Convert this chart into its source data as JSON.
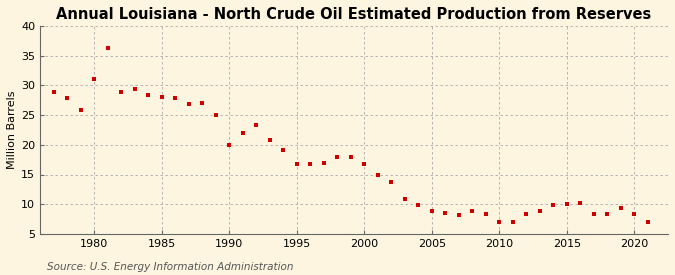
{
  "title": "Annual Louisiana - North Crude Oil Estimated Production from Reserves",
  "ylabel": "Million Barrels",
  "source": "Source: U.S. Energy Information Administration",
  "years": [
    1977,
    1978,
    1979,
    1980,
    1981,
    1982,
    1983,
    1984,
    1985,
    1986,
    1987,
    1988,
    1989,
    1990,
    1991,
    1992,
    1993,
    1994,
    1995,
    1996,
    1997,
    1998,
    1999,
    2000,
    2001,
    2002,
    2003,
    2004,
    2005,
    2006,
    2007,
    2008,
    2009,
    2010,
    2011,
    2012,
    2013,
    2014,
    2015,
    2016,
    2017,
    2018,
    2019,
    2020,
    2021
  ],
  "values": [
    28.9,
    27.8,
    25.8,
    31.0,
    36.2,
    28.8,
    29.3,
    28.3,
    28.0,
    27.8,
    26.8,
    27.1,
    25.0,
    20.0,
    22.0,
    23.3,
    20.8,
    19.2,
    16.8,
    16.8,
    17.0,
    18.0,
    18.0,
    16.8,
    15.0,
    13.8,
    10.8,
    9.8,
    8.8,
    8.5,
    8.2,
    8.8,
    8.3,
    7.0,
    7.0,
    8.3,
    8.8,
    9.8,
    10.0,
    10.2,
    8.3,
    8.3,
    9.3,
    8.3,
    7.0
  ],
  "marker_color": "#cc0000",
  "marker_size": 3.5,
  "background_color": "#fdf5e0",
  "grid_color": "#aaaaaa",
  "xlim": [
    1976,
    2022.5
  ],
  "ylim": [
    5,
    40
  ],
  "yticks": [
    5,
    10,
    15,
    20,
    25,
    30,
    35,
    40
  ],
  "xticks": [
    1980,
    1985,
    1990,
    1995,
    2000,
    2005,
    2010,
    2015,
    2020
  ],
  "title_fontsize": 10.5,
  "ylabel_fontsize": 8,
  "tick_fontsize": 8,
  "source_fontsize": 7.5
}
